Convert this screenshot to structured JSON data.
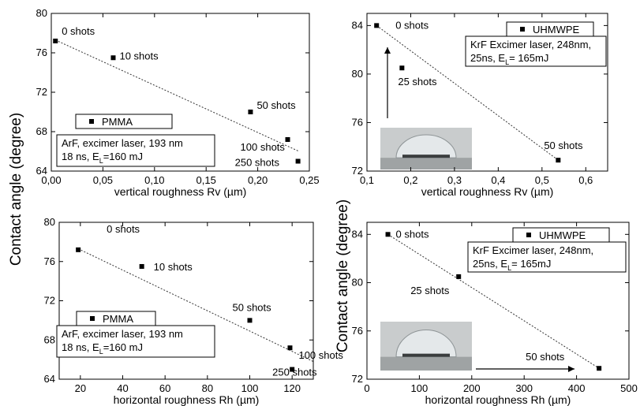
{
  "figure": {
    "ylabel_main_1": "Contact angle (degree)",
    "ylabel_main_2": "Contact angle (degree)"
  },
  "chart_data": [
    {
      "type": "scatter",
      "panel": "top-left",
      "xlabel": "vertical roughness Rv (µm)",
      "ylabel": "",
      "xlim": [
        0.0,
        0.25
      ],
      "ylim": [
        64,
        80
      ],
      "xticks": [
        "0,00",
        "0,05",
        "0,10",
        "0,15",
        "0,20",
        "0,25"
      ],
      "xtick_values": [
        0.0,
        0.05,
        0.1,
        0.15,
        0.2,
        0.25
      ],
      "yticks": [
        "64",
        "68",
        "72",
        "76",
        "80"
      ],
      "ytick_values": [
        64,
        68,
        72,
        76,
        80
      ],
      "series": [
        {
          "name": "PMMA",
          "x": [
            0.004,
            0.06,
            0.193,
            0.229,
            0.239
          ],
          "y": [
            77.2,
            75.5,
            70.0,
            67.2,
            65.0
          ],
          "labels": [
            "0 shots",
            "10 shots",
            "50 shots",
            "100 shots",
            "250 shots"
          ]
        }
      ],
      "fit_line": {
        "x": [
          0.004,
          0.24
        ],
        "y": [
          77.3,
          66.0
        ]
      },
      "info_box": [
        "ArF, excimer laser, 193 nm",
        "18 ns, E",
        "L",
        "=160 mJ"
      ],
      "grid": false,
      "legend": "left"
    },
    {
      "type": "scatter",
      "panel": "top-right",
      "xlabel": "vertical roughness Rv (µm)",
      "ylabel": "",
      "xlim": [
        0.1,
        0.65
      ],
      "ylim": [
        72,
        85
      ],
      "xticks": [
        "0,1",
        "0,2",
        "0,3",
        "0,4",
        "0,5",
        "0,6"
      ],
      "xtick_values": [
        0.1,
        0.2,
        0.3,
        0.4,
        0.5,
        0.6
      ],
      "yticks": [
        "72",
        "76",
        "80",
        "84"
      ],
      "ytick_values": [
        72,
        76,
        80,
        84
      ],
      "series": [
        {
          "name": "UHMWPE",
          "x": [
            0.122,
            0.18,
            0.537
          ],
          "y": [
            84.0,
            80.5,
            72.9
          ],
          "labels": [
            "0 shots",
            "25 shots",
            "50 shots"
          ]
        }
      ],
      "fit_line": {
        "x": [
          0.122,
          0.537
        ],
        "y": [
          84.0,
          72.9
        ]
      },
      "info_box": [
        "KrF Excimer laser, 248nm,",
        "25ns, E",
        "L",
        "= 165mJ"
      ],
      "grid": false,
      "legend": "top-right"
    },
    {
      "type": "scatter",
      "panel": "bottom-left",
      "xlabel": "horizontal roughness Rh (µm)",
      "ylabel": "",
      "xlim": [
        10,
        130
      ],
      "ylim": [
        64,
        80
      ],
      "xticks": [
        "20",
        "40",
        "60",
        "80",
        "100",
        "120"
      ],
      "xtick_values": [
        20,
        40,
        60,
        80,
        100,
        120
      ],
      "yticks": [
        "64",
        "68",
        "72",
        "76",
        "80"
      ],
      "ytick_values": [
        64,
        68,
        72,
        76,
        80
      ],
      "series": [
        {
          "name": "PMMA",
          "x": [
            19,
            49,
            100,
            119,
            120
          ],
          "y": [
            77.2,
            75.5,
            70.0,
            67.2,
            65.0
          ],
          "labels": [
            "0 shots",
            "10 shots",
            "50 shots",
            "100 shots",
            "250 shots"
          ]
        }
      ],
      "fit_line": {
        "x": [
          19,
          130
        ],
        "y": [
          77.3,
          65.8
        ]
      },
      "info_box": [
        "ArF, excimer laser, 193 nm",
        "18 ns, E",
        "L",
        "=160 mJ"
      ],
      "grid": false,
      "legend": "left"
    },
    {
      "type": "scatter",
      "panel": "bottom-right",
      "xlabel": "horizontal roughness Rh (µm)",
      "ylabel": "",
      "xlim": [
        0,
        500
      ],
      "ylim": [
        72,
        85
      ],
      "xticks": [
        "0",
        "100",
        "200",
        "300",
        "400",
        "500"
      ],
      "xtick_values": [
        0,
        100,
        200,
        300,
        400,
        500
      ],
      "yticks": [
        "72",
        "76",
        "80",
        "84"
      ],
      "ytick_values": [
        72,
        76,
        80,
        84
      ],
      "series": [
        {
          "name": "UHMWPE",
          "x": [
            40,
            175,
            443
          ],
          "y": [
            84.0,
            80.5,
            72.9
          ],
          "labels": [
            "0 shots",
            "25 shots",
            "50 shots"
          ]
        }
      ],
      "fit_line": {
        "x": [
          40,
          443
        ],
        "y": [
          84.0,
          72.9
        ]
      },
      "info_box": [
        "KrF Excimer laser, 248nm,",
        "25ns, E",
        "L",
        "= 165mJ"
      ],
      "grid": false,
      "legend": "top-right"
    }
  ]
}
